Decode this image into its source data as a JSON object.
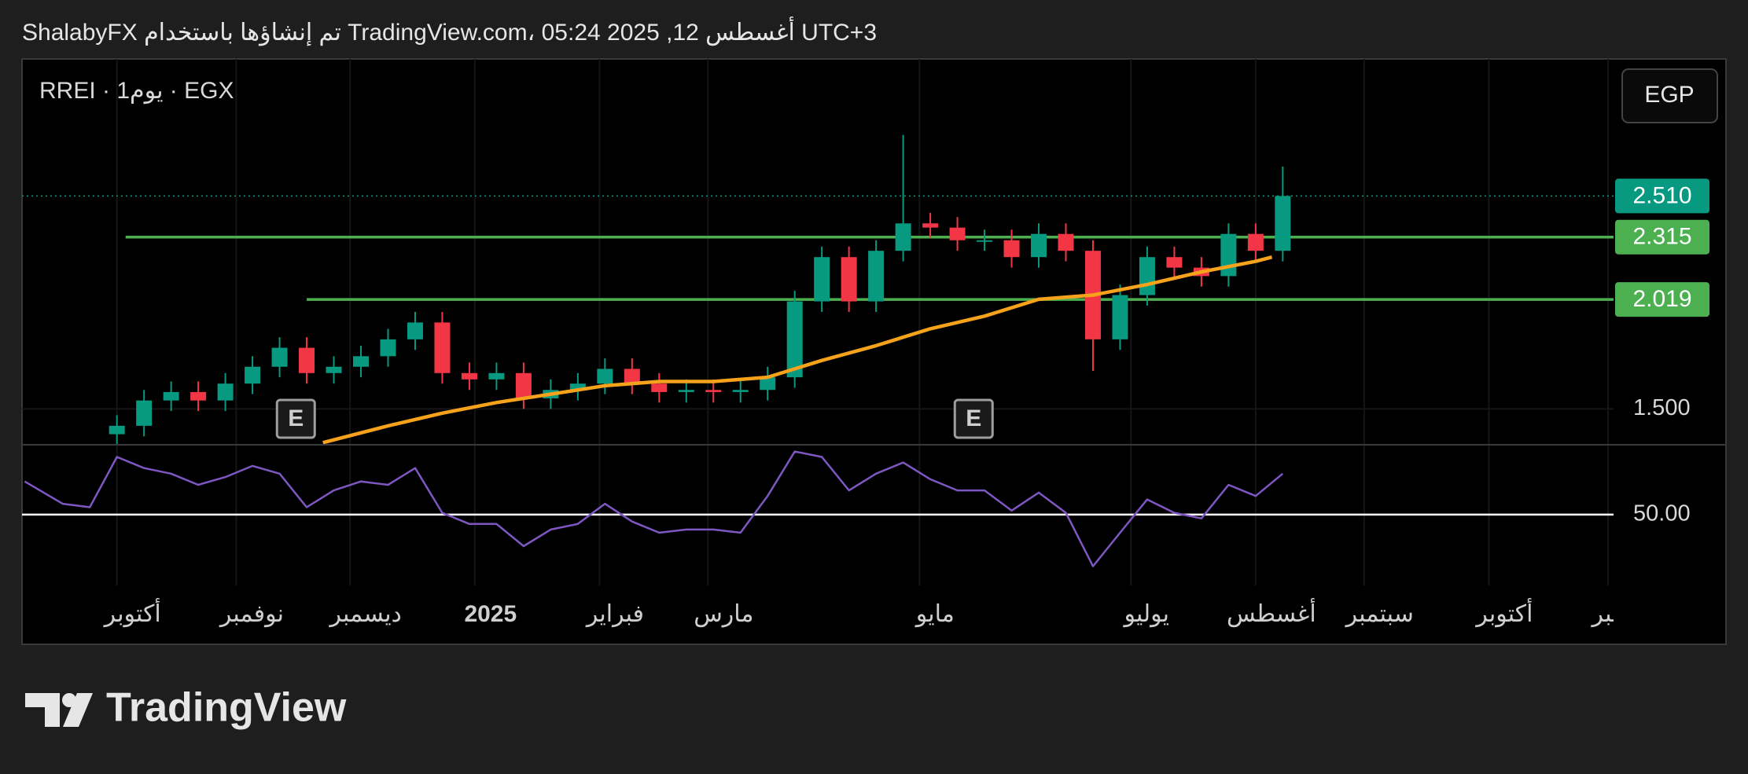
{
  "chart_data": {
    "type": "candlestick",
    "header": "ShalabyFX تم إنشاؤها باستخدام TradingView.com، 05:24 2025 ,12 أغسطس UTC+3",
    "symbol": "RREI · 1يوم · EGX",
    "currency_button": "EGP",
    "brand": "TradingView",
    "up_color": "#089981",
    "down_color": "#f23645",
    "x": [
      0,
      5,
      10,
      15,
      20,
      25,
      30,
      35,
      40,
      45,
      50,
      55,
      60,
      65,
      70,
      75,
      80,
      85,
      90,
      95,
      100,
      105,
      110,
      115,
      120,
      125,
      130,
      135,
      140,
      145,
      150,
      155,
      160,
      165,
      170,
      175,
      180,
      185,
      190,
      195,
      200,
      205,
      210,
      215
    ],
    "open": [
      1.38,
      1.42,
      1.54,
      1.58,
      1.54,
      1.62,
      1.7,
      1.79,
      1.67,
      1.7,
      1.75,
      1.83,
      1.91,
      1.67,
      1.64,
      1.67,
      1.55,
      1.59,
      1.62,
      1.69,
      1.62,
      1.58,
      1.59,
      1.58,
      1.59,
      1.65,
      2.01,
      2.22,
      2.01,
      2.25,
      2.38,
      2.36,
      2.3,
      2.3,
      2.22,
      2.33,
      2.25,
      1.83,
      2.04,
      2.22,
      2.17,
      2.13,
      2.33,
      2.25
    ],
    "high": [
      1.47,
      1.59,
      1.63,
      1.63,
      1.67,
      1.75,
      1.84,
      1.84,
      1.75,
      1.8,
      1.88,
      1.96,
      1.96,
      1.72,
      1.72,
      1.72,
      1.64,
      1.67,
      1.74,
      1.74,
      1.67,
      1.64,
      1.64,
      1.64,
      1.7,
      2.06,
      2.27,
      2.27,
      2.3,
      2.8,
      2.43,
      2.41,
      2.35,
      2.35,
      2.38,
      2.38,
      2.3,
      2.09,
      2.27,
      2.27,
      2.22,
      2.38,
      2.38,
      2.65
    ],
    "low": [
      1.33,
      1.37,
      1.49,
      1.49,
      1.49,
      1.57,
      1.65,
      1.62,
      1.62,
      1.65,
      1.7,
      1.78,
      1.62,
      1.59,
      1.59,
      1.5,
      1.5,
      1.54,
      1.57,
      1.57,
      1.53,
      1.53,
      1.53,
      1.53,
      1.54,
      1.6,
      1.96,
      1.96,
      1.96,
      2.2,
      2.31,
      2.25,
      2.25,
      2.17,
      2.17,
      2.2,
      1.68,
      1.78,
      1.99,
      2.12,
      2.08,
      2.08,
      2.2,
      2.2
    ],
    "close": [
      1.42,
      1.54,
      1.58,
      1.54,
      1.62,
      1.7,
      1.79,
      1.67,
      1.7,
      1.75,
      1.83,
      1.91,
      1.67,
      1.64,
      1.67,
      1.55,
      1.59,
      1.62,
      1.69,
      1.62,
      1.58,
      1.59,
      1.58,
      1.59,
      1.65,
      2.01,
      2.22,
      2.01,
      2.25,
      2.38,
      2.36,
      2.3,
      2.3,
      2.22,
      2.33,
      2.25,
      1.83,
      2.04,
      2.22,
      2.17,
      2.13,
      2.33,
      2.25,
      2.51
    ],
    "xlim": [
      -17.5,
      276
    ],
    "xticks": [
      {
        "value": 0,
        "label": "أكتوبر"
      },
      {
        "value": 22,
        "label": "نوفمبر"
      },
      {
        "value": 43,
        "label": "ديسمبر"
      },
      {
        "value": 66,
        "label": "2025"
      },
      {
        "value": 89,
        "label": "فبراير"
      },
      {
        "value": 109,
        "label": "مارس"
      },
      {
        "value": 148,
        "label": "مايو"
      },
      {
        "value": 187,
        "label": "يوليو"
      },
      {
        "value": 210,
        "label": "أغسطس"
      },
      {
        "value": 230,
        "label": "سبتمبر"
      },
      {
        "value": 253,
        "label": "أكتوبر"
      },
      {
        "value": 275,
        "label": "نوفمبر"
      }
    ],
    "ylim": [
      1.33,
      3.16
    ],
    "yticks": [
      {
        "value": 1.5,
        "label": "1.500"
      }
    ],
    "last_price": {
      "value": 2.51,
      "label": "2.510",
      "color": "#089981"
    },
    "levels": [
      {
        "value": 2.315,
        "label": "2.315",
        "start": 1.6,
        "color": "#4caf50"
      },
      {
        "value": 2.019,
        "label": "2.019",
        "start": 35,
        "color": "#4caf50"
      }
    ],
    "moving_average": {
      "color": "#f7a21b",
      "x": [
        38,
        50,
        60,
        70,
        80,
        90,
        100,
        110,
        120,
        130,
        140,
        150,
        160,
        170,
        180,
        190,
        200,
        210,
        213
      ],
      "values": [
        1.34,
        1.42,
        1.48,
        1.53,
        1.57,
        1.61,
        1.63,
        1.63,
        1.65,
        1.73,
        1.8,
        1.88,
        1.94,
        2.02,
        2.04,
        2.09,
        2.15,
        2.2,
        2.22
      ]
    },
    "earnings": [
      {
        "x": 33,
        "label": "E"
      },
      {
        "x": 158,
        "label": "E"
      }
    ],
    "rsi": {
      "color": "#7e57c2",
      "x": [
        -17,
        -10,
        -5,
        0,
        5,
        10,
        15,
        20,
        25,
        30,
        35,
        40,
        45,
        50,
        55,
        60,
        65,
        70,
        75,
        80,
        85,
        90,
        95,
        100,
        105,
        110,
        115,
        120,
        125,
        130,
        135,
        140,
        145,
        150,
        155,
        160,
        165,
        170,
        175,
        180,
        185,
        190,
        195,
        200,
        205,
        210,
        215
      ],
      "values": [
        66.6,
        55.4,
        53.7,
        78.9,
        73.3,
        70.5,
        64.9,
        68.8,
        74.4,
        70.5,
        53.7,
        62.1,
        66.6,
        64.9,
        73.3,
        50.9,
        45.3,
        45.3,
        34.2,
        42.5,
        45.3,
        55.4,
        46.5,
        40.9,
        42.5,
        42.5,
        40.9,
        59.3,
        81.6,
        78.9,
        62.1,
        70.5,
        76.1,
        67.7,
        62.1,
        62.1,
        52.0,
        61.0,
        50.9,
        24.1,
        40.9,
        57.6,
        50.9,
        48.1,
        64.9,
        59.3,
        70.5
      ],
      "ylim": [
        20,
        85
      ],
      "yticks": [
        {
          "value": 50,
          "label": "50.00"
        }
      ]
    }
  }
}
